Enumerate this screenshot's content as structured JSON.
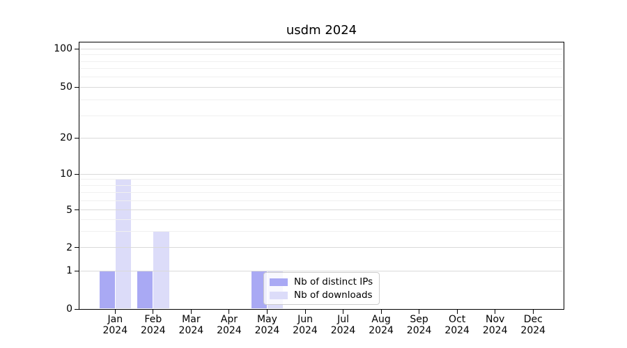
{
  "chart_data": {
    "type": "bar",
    "title": "usdm 2024",
    "categories": [
      "Jan 2024",
      "Feb 2024",
      "Mar 2024",
      "Apr 2024",
      "May 2024",
      "Jun 2024",
      "Jul 2024",
      "Aug 2024",
      "Sep 2024",
      "Oct 2024",
      "Nov 2024",
      "Dec 2024"
    ],
    "month_labels": [
      "Jan",
      "Feb",
      "Mar",
      "Apr",
      "May",
      "Jun",
      "Jul",
      "Aug",
      "Sep",
      "Oct",
      "Nov",
      "Dec"
    ],
    "year_label": "2024",
    "series": [
      {
        "name": "Nb of distinct IPs",
        "color": "#a9a9f4",
        "values": [
          1,
          1,
          0,
          0,
          1,
          0,
          0,
          0,
          0,
          0,
          0,
          0
        ]
      },
      {
        "name": "Nb of downloads",
        "color": "#dcdcf9",
        "values": [
          9,
          3,
          0,
          0,
          1,
          0,
          0,
          0,
          0,
          0,
          0,
          0
        ]
      }
    ],
    "y_axis": {
      "scale": "log-like",
      "ticks": [
        0,
        1,
        2,
        5,
        10,
        20,
        50,
        100
      ],
      "minor_gridlines": [
        3,
        4,
        6,
        7,
        8,
        9,
        30,
        40,
        60,
        70,
        80,
        90
      ],
      "range_top": 110
    },
    "legend": {
      "entries": [
        "Nb of distinct IPs",
        "Nb of downloads"
      ],
      "location": "inside-bottom-center-right"
    },
    "grid": true,
    "colors": {
      "major_grid": "#d9d9d9",
      "minor_grid": "#f0f0f0",
      "axis": "#000000",
      "legend_border": "#cccccc"
    }
  }
}
